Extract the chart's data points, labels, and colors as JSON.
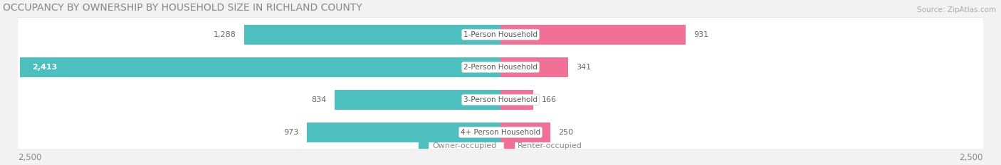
{
  "title": "OCCUPANCY BY OWNERSHIP BY HOUSEHOLD SIZE IN RICHLAND COUNTY",
  "source": "Source: ZipAtlas.com",
  "categories": [
    "1-Person Household",
    "2-Person Household",
    "3-Person Household",
    "4+ Person Household"
  ],
  "owner_values": [
    1288,
    2413,
    834,
    973
  ],
  "renter_values": [
    931,
    341,
    166,
    250
  ],
  "max_scale": 2500,
  "owner_color": "#4dbfbf",
  "renter_color": "#f07098",
  "bg_color": "#f2f2f2",
  "row_bg_color": "#e8e8e8",
  "row_fill_color": "#fafafa",
  "title_fontsize": 10,
  "source_fontsize": 7.5,
  "bar_label_fontsize": 8,
  "category_fontsize": 7.5,
  "legend_fontsize": 8,
  "axis_label_fontsize": 8.5,
  "axis_label": "2,500"
}
